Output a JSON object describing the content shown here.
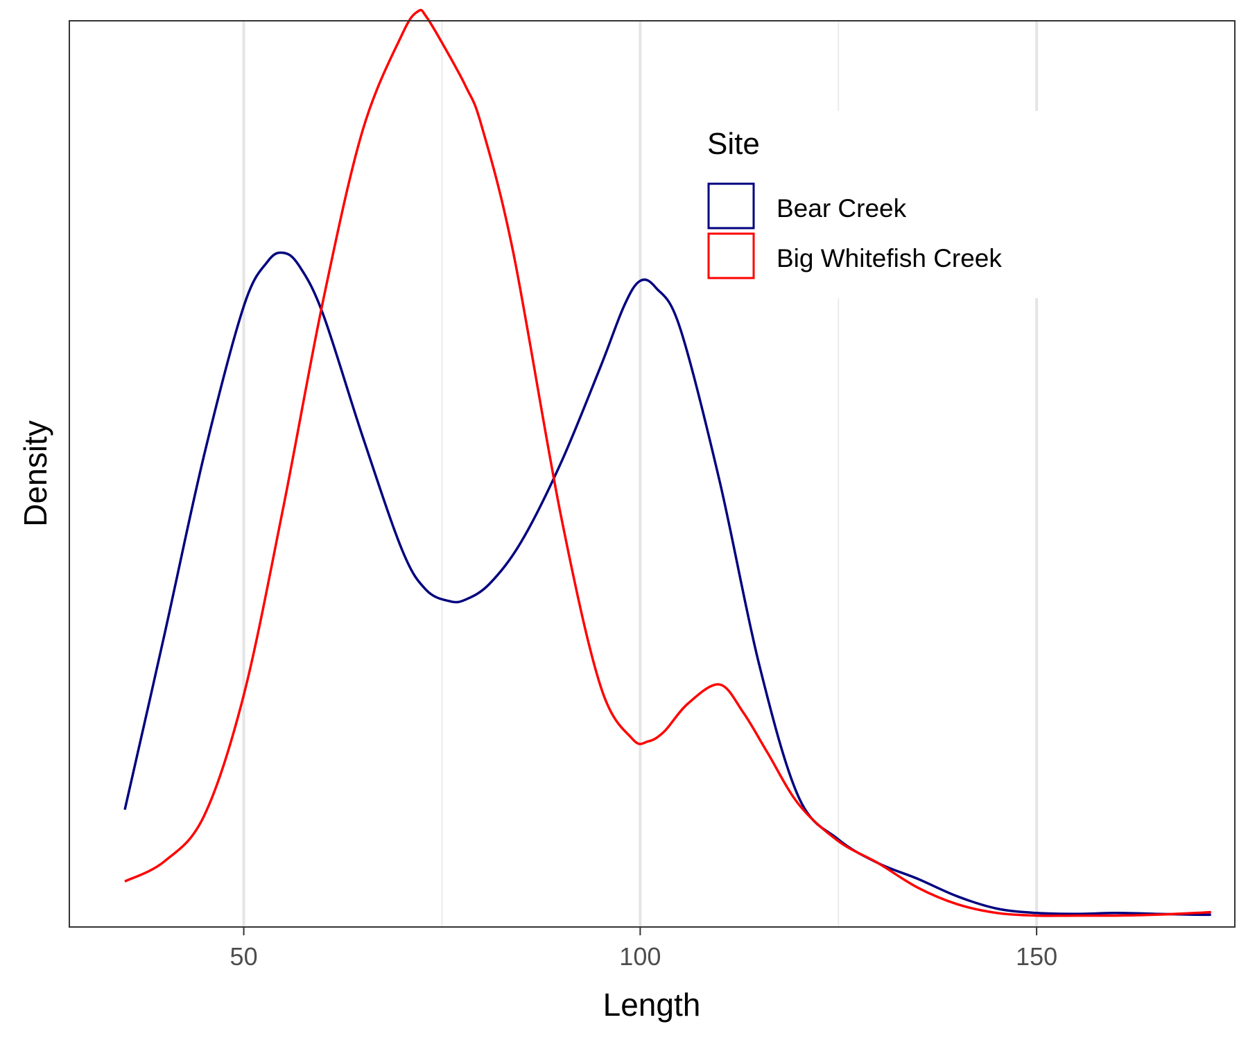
{
  "chart_data": {
    "type": "line",
    "xlabel": "Length",
    "ylabel": "Density",
    "xlim": [
      28,
      175
    ],
    "ylim": [
      0,
      1.035
    ],
    "x_ticks": [
      50,
      100,
      150
    ],
    "x_minor_gridlines": [
      75,
      125,
      175
    ],
    "y_ticks_shown": false,
    "grid": "vertical",
    "legend": {
      "title": "Site",
      "position": "top-right"
    },
    "series": [
      {
        "name": "Bear Creek",
        "color": "#00007F",
        "x": [
          35,
          40,
          45,
          50,
          53,
          55,
          57,
          60,
          65,
          70,
          73,
          76,
          78,
          81,
          85,
          90,
          95,
          98,
          100,
          102,
          105,
          110,
          115,
          120,
          125,
          130,
          135,
          140,
          145,
          150,
          155,
          160,
          165,
          170,
          172
        ],
        "y": [
          0.134,
          0.334,
          0.539,
          0.709,
          0.76,
          0.77,
          0.755,
          0.7,
          0.56,
          0.43,
          0.385,
          0.372,
          0.374,
          0.392,
          0.44,
          0.53,
          0.64,
          0.71,
          0.738,
          0.73,
          0.685,
          0.51,
          0.3,
          0.148,
          0.1,
          0.073,
          0.055,
          0.035,
          0.021,
          0.016,
          0.015,
          0.016,
          0.015,
          0.014,
          0.014
        ]
      },
      {
        "name": "Big Whitefish Creek",
        "color": "#FF0000",
        "x": [
          35,
          40,
          45,
          50,
          55,
          60,
          65,
          70,
          72,
          73,
          75,
          78,
          80,
          84,
          90,
          95,
          99,
          101,
          103,
          106,
          110,
          113,
          116,
          120,
          125,
          130,
          135,
          140,
          145,
          150,
          155,
          160,
          165,
          170,
          172
        ],
        "y": [
          0.052,
          0.075,
          0.127,
          0.265,
          0.48,
          0.715,
          0.91,
          1.02,
          1.046,
          1.04,
          1.01,
          0.96,
          0.915,
          0.77,
          0.47,
          0.275,
          0.215,
          0.212,
          0.223,
          0.255,
          0.277,
          0.245,
          0.2,
          0.14,
          0.098,
          0.073,
          0.045,
          0.026,
          0.016,
          0.013,
          0.013,
          0.013,
          0.014,
          0.016,
          0.017
        ]
      }
    ]
  }
}
